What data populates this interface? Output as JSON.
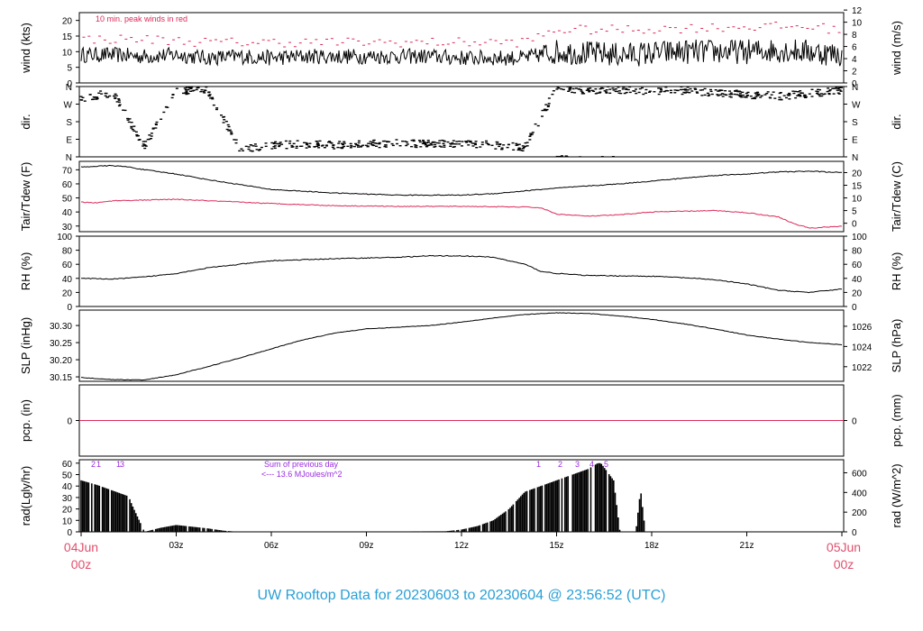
{
  "page_title": "UW Rooftop Data for 20230603  to  20230604 @ 23:56:52  (UTC)",
  "colors": {
    "line": "#000000",
    "accent_red": "#dc2a5a",
    "annotation_purple": "#9b2be0",
    "title_blue": "#2a9fd6",
    "date_red": "#e0506e"
  },
  "x_axis": {
    "ticks": [
      {
        "hour": 0,
        "label": ""
      },
      {
        "hour": 3,
        "label": "03z"
      },
      {
        "hour": 6,
        "label": "06z"
      },
      {
        "hour": 9,
        "label": "09z"
      },
      {
        "hour": 12,
        "label": "12z"
      },
      {
        "hour": 15,
        "label": "15z"
      },
      {
        "hour": 18,
        "label": "18z"
      },
      {
        "hour": 21,
        "label": "21z"
      },
      {
        "hour": 24,
        "label": ""
      }
    ],
    "start_date": "04Jun",
    "start_time": "00z",
    "end_date": "05Jun",
    "end_time": "00z"
  },
  "chart_data": [
    {
      "type": "line",
      "ylabel_left": "wind (kts)",
      "ylabel_right": "wind (m/s)",
      "left_ticks": [
        0,
        5,
        10,
        15,
        20
      ],
      "right_ticks": [
        0,
        2,
        4,
        6,
        8,
        10,
        12
      ],
      "ylim": [
        0,
        22.5
      ],
      "annotation": "10 min. peak winds in red",
      "series": [
        {
          "x": [
            0,
            1,
            2,
            3,
            4,
            5,
            6,
            7,
            8,
            9,
            10,
            11,
            12,
            13,
            14,
            14.5,
            15,
            16,
            17,
            18,
            19,
            20,
            21,
            22,
            23,
            24
          ],
          "values": [
            9,
            9,
            8.5,
            9,
            8,
            8.5,
            8,
            8.5,
            8.5,
            8.5,
            8.5,
            8.5,
            8,
            8,
            8,
            9,
            10,
            9.5,
            9,
            9.5,
            10,
            10,
            10,
            10.5,
            10,
            9
          ]
        },
        {
          "x": [
            0,
            2,
            4,
            6,
            8,
            10,
            12,
            14,
            15,
            17,
            19,
            21,
            23,
            24
          ],
          "values": [
            14,
            14,
            13,
            13,
            13,
            13,
            13,
            13,
            17,
            17,
            17.5,
            18,
            18,
            17
          ]
        }
      ]
    },
    {
      "type": "scatter",
      "ylabel_left": "dir.",
      "ylabel_right": "dir.",
      "left_ticks": [
        "N",
        "E",
        "S",
        "W",
        "N"
      ],
      "right_ticks": [
        "N",
        "E",
        "S",
        "W",
        "N"
      ],
      "ylim": [
        0,
        360
      ],
      "series": [
        {
          "x": [
            0,
            1,
            2,
            3,
            4,
            5,
            6,
            7,
            8,
            9,
            10,
            11,
            12,
            13,
            14,
            15,
            16,
            17,
            18,
            19,
            20,
            21,
            22,
            23,
            24
          ],
          "values": [
            300,
            330,
            50,
            335,
            340,
            40,
            60,
            65,
            60,
            65,
            70,
            65,
            70,
            60,
            50,
            350,
            340,
            345,
            335,
            340,
            330,
            320,
            310,
            325,
            340
          ]
        }
      ]
    },
    {
      "type": "line",
      "ylabel_left": "Tair/Tdew (F)",
      "ylabel_right": "Tair/Tdew (C)",
      "left_ticks": [
        30,
        40,
        50,
        60,
        70
      ],
      "right_ticks": [
        0,
        5,
        10,
        15,
        20
      ],
      "ylim": [
        26,
        76
      ],
      "series": [
        {
          "x": [
            0,
            1,
            1.5,
            2,
            3,
            4,
            6,
            8,
            10,
            12,
            13,
            14,
            15,
            16,
            17,
            18,
            19,
            20,
            21,
            22,
            23,
            24
          ],
          "values": [
            72,
            73,
            72,
            70,
            67,
            63,
            56,
            53.5,
            52,
            52,
            53,
            55,
            57,
            58.5,
            60,
            62,
            64,
            66,
            67,
            68.5,
            69,
            68
          ]
        },
        {
          "x": [
            0,
            0.5,
            1,
            2,
            3,
            4,
            6,
            8,
            10,
            12,
            14,
            14.5,
            15,
            16,
            17,
            18,
            19,
            20,
            21,
            22,
            22.5,
            23,
            24
          ],
          "values": [
            47,
            46.5,
            48,
            48.5,
            49,
            48,
            46,
            44.5,
            44,
            44,
            43.5,
            43,
            38.5,
            37,
            38,
            40,
            40.5,
            41,
            39.5,
            36.5,
            31.5,
            28.5,
            30
          ]
        }
      ]
    },
    {
      "type": "line",
      "ylabel_left": "RH (%)",
      "ylabel_right": "RH (%)",
      "left_ticks": [
        0,
        20,
        40,
        60,
        80,
        100
      ],
      "right_ticks": [
        0,
        20,
        40,
        60,
        80,
        100
      ],
      "ylim": [
        0,
        100
      ],
      "series": [
        {
          "x": [
            0,
            1,
            2,
            3,
            4,
            5,
            6,
            8,
            10,
            11,
            12,
            13,
            14,
            14.5,
            15,
            16,
            18,
            19,
            20,
            21,
            22,
            23,
            24
          ],
          "values": [
            40,
            39,
            42,
            47,
            55,
            60,
            65,
            68,
            70,
            72,
            72,
            70,
            60,
            50,
            47,
            44,
            43,
            41,
            38,
            32,
            23,
            20,
            25
          ]
        }
      ]
    },
    {
      "type": "line",
      "ylabel_left": "SLP (inHg)",
      "ylabel_right": "SLP (hPa)",
      "left_ticks": [
        30.15,
        30.2,
        30.25,
        30.3
      ],
      "left_tick_labels": [
        "30.15",
        "30.20",
        "30.25",
        "30.30"
      ],
      "right_ticks": [
        1022,
        1024,
        1026
      ],
      "ylim": [
        30.137,
        30.345
      ],
      "series": [
        {
          "x": [
            0,
            1,
            2,
            3,
            4,
            5,
            6,
            7,
            8,
            9,
            10,
            11,
            12,
            13,
            14,
            15,
            16,
            17,
            18,
            19,
            20,
            21,
            22,
            23,
            24
          ],
          "values": [
            30.148,
            30.142,
            30.141,
            30.156,
            30.18,
            30.205,
            30.232,
            30.258,
            30.278,
            30.29,
            30.295,
            30.3,
            30.31,
            30.322,
            30.332,
            30.337,
            30.335,
            30.328,
            30.318,
            30.305,
            30.29,
            30.272,
            30.26,
            30.25,
            30.244
          ]
        }
      ]
    },
    {
      "type": "line",
      "ylabel_left": "pcp. (in)",
      "ylabel_right": "pcp. (mm)",
      "left_ticks": [
        0
      ],
      "right_ticks": [
        0
      ],
      "ylim": [
        -1,
        1
      ],
      "series": [
        {
          "x": [
            0,
            24
          ],
          "values": [
            0,
            0
          ]
        }
      ]
    },
    {
      "type": "bar",
      "ylabel_left": "rad(Lgly/hr)",
      "ylabel_right": "rad (W/m^2)",
      "left_ticks": [
        0,
        10,
        20,
        30,
        40,
        50,
        60
      ],
      "right_ticks": [
        0,
        200,
        400,
        600
      ],
      "ylim": [
        0,
        63
      ],
      "hour_marks_left": [
        "1",
        "2",
        "1",
        "3"
      ],
      "hour_marks_right": [
        "1",
        "2",
        "3",
        "4",
        "5"
      ],
      "note_line1": "Sum of previous day",
      "note_line2": "<--- 13.6 MJoules/m^2",
      "series": [
        {
          "x": [
            0,
            0.5,
            1,
            1.5,
            1.6,
            2,
            2.5,
            3,
            3.5,
            4,
            4.5,
            5,
            11.5,
            12,
            12.5,
            13,
            13.5,
            14,
            14.5,
            15,
            15.5,
            16,
            16.3,
            16.4,
            16.8,
            17,
            17.5,
            17.65,
            17.8,
            18
          ],
          "values": [
            45,
            41,
            36,
            31,
            24,
            0,
            3.5,
            6,
            4.5,
            3,
            1,
            0,
            0.5,
            2,
            5,
            10,
            20,
            35,
            40,
            45,
            50,
            55,
            60,
            60,
            45,
            0,
            0,
            37,
            0,
            0
          ]
        }
      ]
    }
  ]
}
